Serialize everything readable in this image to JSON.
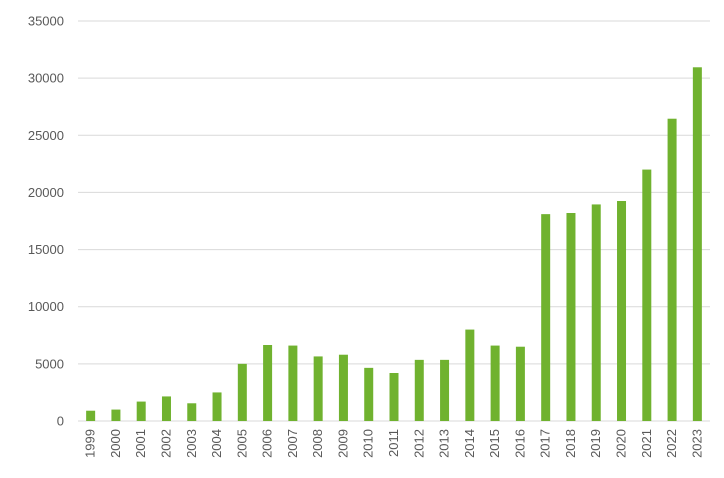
{
  "chart_data": {
    "type": "bar",
    "title": "",
    "xlabel": "",
    "ylabel": "",
    "categories": [
      "1999",
      "2000",
      "2001",
      "2002",
      "2003",
      "2004",
      "2005",
      "2006",
      "2007",
      "2008",
      "2009",
      "2010",
      "2011",
      "2012",
      "2013",
      "2014",
      "2015",
      "2016",
      "2017",
      "2018",
      "2019",
      "2020",
      "2021",
      "2022",
      "2023"
    ],
    "values": [
      900,
      1000,
      1700,
      2150,
      1550,
      2500,
      5000,
      6650,
      6600,
      5650,
      5800,
      4650,
      4200,
      5350,
      5350,
      8000,
      6600,
      6500,
      18100,
      18200,
      18950,
      19250,
      22000,
      26450,
      30950
    ],
    "ylim": [
      0,
      35000
    ],
    "yticks": [
      0,
      5000,
      10000,
      15000,
      20000,
      25000,
      30000,
      35000
    ],
    "grid": true,
    "legend": "none",
    "bar_color": "#70b22f",
    "grid_color": "#d9d9d9"
  }
}
